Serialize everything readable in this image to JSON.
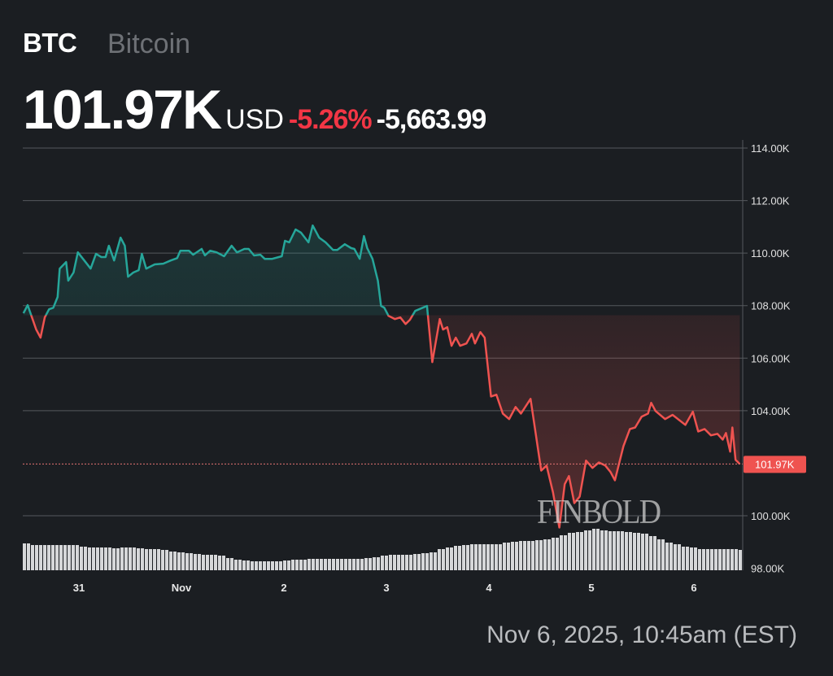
{
  "header": {
    "symbol": "BTC",
    "name": "Bitcoin",
    "price": "101.97K",
    "currency": "USD",
    "change_percent": "-5.26%",
    "change_value": "-5,663.99"
  },
  "footer": {
    "timestamp": "Nov 6, 2025, 10:45am (EST)"
  },
  "watermark": "FINBOLD",
  "colors": {
    "up": "#26a69a",
    "down": "#ef5350",
    "background": "#1b1e22",
    "grid": "#4a4d52",
    "change_negative": "#f23645"
  },
  "chart_data": {
    "type": "line",
    "title": "",
    "xlabel": "",
    "ylabel": "",
    "ylim": [
      98000,
      114000
    ],
    "grid": true,
    "y_ticks": [
      "114.00K",
      "112.00K",
      "110.00K",
      "108.00K",
      "106.00K",
      "104.00K",
      "100.00K",
      "98.00K"
    ],
    "y_tick_values": [
      114000,
      112000,
      110000,
      108000,
      106000,
      104000,
      100000,
      98000
    ],
    "x_ticks": [
      {
        "label": "31",
        "t": "2025-10-31T00:00"
      },
      {
        "label": "Nov",
        "t": "2025-11-01T00:00"
      },
      {
        "label": "2",
        "t": "2025-11-02T00:00"
      },
      {
        "label": "3",
        "t": "2025-11-03T00:00"
      },
      {
        "label": "4",
        "t": "2025-11-04T00:00"
      },
      {
        "label": "5",
        "t": "2025-11-05T00:00"
      },
      {
        "label": "6",
        "t": "2025-11-06T00:00"
      }
    ],
    "reference_price": 107634,
    "last_price": 101970,
    "last_price_label": "101.97K",
    "series": [
      {
        "points": [
          [
            "2025-10-30T11:00",
            107.71
          ],
          [
            "2025-10-30T12:00",
            108.02
          ],
          [
            "2025-10-30T13:00",
            107.55
          ],
          [
            "2025-10-30T14:00",
            107.09
          ],
          [
            "2025-10-30T15:00",
            106.78
          ],
          [
            "2025-10-30T16:00",
            107.55
          ],
          [
            "2025-10-30T17:00",
            107.86
          ],
          [
            "2025-10-30T18:00",
            107.92
          ],
          [
            "2025-10-30T19:00",
            108.33
          ],
          [
            "2025-10-30T19:30",
            109.41
          ],
          [
            "2025-10-30T21:00",
            109.66
          ],
          [
            "2025-10-30T21:30",
            108.95
          ],
          [
            "2025-10-30T22:45",
            109.26
          ],
          [
            "2025-10-30T23:45",
            110.03
          ],
          [
            "2025-10-31T01:15",
            109.72
          ],
          [
            "2025-10-31T02:45",
            109.41
          ],
          [
            "2025-10-31T04:00",
            109.97
          ],
          [
            "2025-10-31T05:15",
            109.85
          ],
          [
            "2025-10-31T06:15",
            109.85
          ],
          [
            "2025-10-31T07:00",
            110.28
          ],
          [
            "2025-10-31T08:15",
            109.72
          ],
          [
            "2025-10-31T09:45",
            110.59
          ],
          [
            "2025-10-31T10:45",
            110.28
          ],
          [
            "2025-10-31T11:30",
            109.1
          ],
          [
            "2025-10-31T12:45",
            109.26
          ],
          [
            "2025-10-31T14:00",
            109.35
          ],
          [
            "2025-10-31T14:45",
            109.97
          ],
          [
            "2025-10-31T15:45",
            109.41
          ],
          [
            "2025-10-31T17:45",
            109.57
          ],
          [
            "2025-10-31T19:45",
            109.6
          ],
          [
            "2025-10-31T21:30",
            109.72
          ],
          [
            "2025-10-31T23:00",
            109.81
          ],
          [
            "2025-10-31T23:45",
            110.09
          ],
          [
            "2025-11-01T01:45",
            110.09
          ],
          [
            "2025-11-01T02:45",
            109.94
          ],
          [
            "2025-11-01T04:45",
            110.16
          ],
          [
            "2025-11-01T05:30",
            109.91
          ],
          [
            "2025-11-01T06:45",
            110.09
          ],
          [
            "2025-11-01T08:15",
            110.03
          ],
          [
            "2025-11-01T10:00",
            109.88
          ],
          [
            "2025-11-01T11:45",
            110.28
          ],
          [
            "2025-11-01T13:00",
            110.03
          ],
          [
            "2025-11-01T14:45",
            110.16
          ],
          [
            "2025-11-01T15:45",
            110.16
          ],
          [
            "2025-11-01T17:00",
            109.91
          ],
          [
            "2025-11-01T18:30",
            109.94
          ],
          [
            "2025-11-01T19:30",
            109.78
          ],
          [
            "2025-11-01T21:15",
            109.78
          ],
          [
            "2025-11-01T23:30",
            109.88
          ],
          [
            "2025-11-02T00:15",
            110.47
          ],
          [
            "2025-11-02T01:15",
            110.41
          ],
          [
            "2025-11-02T02:45",
            110.9
          ],
          [
            "2025-11-02T04:00",
            110.78
          ],
          [
            "2025-11-02T05:45",
            110.41
          ],
          [
            "2025-11-02T06:45",
            111.05
          ],
          [
            "2025-11-02T08:15",
            110.59
          ],
          [
            "2025-11-02T09:45",
            110.41
          ],
          [
            "2025-11-02T11:30",
            110.12
          ],
          [
            "2025-11-02T12:30",
            110.12
          ],
          [
            "2025-11-02T14:15",
            110.34
          ],
          [
            "2025-11-02T15:45",
            110.19
          ],
          [
            "2025-11-02T16:30",
            110.16
          ],
          [
            "2025-11-02T17:45",
            109.78
          ],
          [
            "2025-11-02T18:45",
            110.65
          ],
          [
            "2025-11-02T19:30",
            110.19
          ],
          [
            "2025-11-02T20:45",
            109.78
          ],
          [
            "2025-11-02T22:00",
            108.95
          ],
          [
            "2025-11-02T22:45",
            107.99
          ],
          [
            "2025-11-02T23:30",
            107.92
          ],
          [
            "2025-11-03T00:30",
            107.61
          ],
          [
            "2025-11-03T02:00",
            107.49
          ],
          [
            "2025-11-03T03:15",
            107.55
          ],
          [
            "2025-11-03T04:30",
            107.3
          ],
          [
            "2025-11-03T05:30",
            107.46
          ],
          [
            "2025-11-03T06:45",
            107.8
          ],
          [
            "2025-11-03T08:30",
            107.92
          ],
          [
            "2025-11-03T09:30",
            107.99
          ],
          [
            "2025-11-03T10:45",
            105.85
          ],
          [
            "2025-11-03T12:30",
            107.49
          ],
          [
            "2025-11-03T13:15",
            107.09
          ],
          [
            "2025-11-03T14:15",
            107.18
          ],
          [
            "2025-11-03T15:15",
            106.47
          ],
          [
            "2025-11-03T16:15",
            106.78
          ],
          [
            "2025-11-03T17:15",
            106.47
          ],
          [
            "2025-11-03T18:45",
            106.56
          ],
          [
            "2025-11-03T20:00",
            106.93
          ],
          [
            "2025-11-03T20:45",
            106.56
          ],
          [
            "2025-11-03T22:00",
            106.99
          ],
          [
            "2025-11-03T23:00",
            106.78
          ],
          [
            "2025-11-04T00:30",
            104.54
          ],
          [
            "2025-11-04T01:45",
            104.61
          ],
          [
            "2025-11-04T03:15",
            103.89
          ],
          [
            "2025-11-04T04:45",
            103.68
          ],
          [
            "2025-11-04T06:15",
            104.14
          ],
          [
            "2025-11-04T07:30",
            103.89
          ],
          [
            "2025-11-04T09:45",
            104.45
          ],
          [
            "2025-11-04T12:15",
            101.72
          ],
          [
            "2025-11-04T13:30",
            101.91
          ],
          [
            "2025-11-04T15:00",
            100.89
          ],
          [
            "2025-11-04T16:30",
            99.55
          ],
          [
            "2025-11-04T17:45",
            101.2
          ],
          [
            "2025-11-04T18:45",
            101.51
          ],
          [
            "2025-11-04T20:00",
            100.48
          ],
          [
            "2025-11-04T21:15",
            100.73
          ],
          [
            "2025-11-04T22:45",
            102.1
          ],
          [
            "2025-11-05T00:15",
            101.82
          ],
          [
            "2025-11-05T01:45",
            102.03
          ],
          [
            "2025-11-05T03:15",
            101.91
          ],
          [
            "2025-11-05T04:30",
            101.66
          ],
          [
            "2025-11-05T05:30",
            101.35
          ],
          [
            "2025-11-05T07:30",
            102.65
          ],
          [
            "2025-11-05T09:00",
            103.3
          ],
          [
            "2025-11-05T10:15",
            103.36
          ],
          [
            "2025-11-05T11:45",
            103.77
          ],
          [
            "2025-11-05T13:15",
            103.89
          ],
          [
            "2025-11-05T14:00",
            104.3
          ],
          [
            "2025-11-05T15:00",
            103.99
          ],
          [
            "2025-11-05T17:15",
            103.68
          ],
          [
            "2025-11-05T19:00",
            103.84
          ],
          [
            "2025-11-05T22:00",
            103.46
          ],
          [
            "2025-11-05T23:45",
            103.96
          ],
          [
            "2025-11-06T01:00",
            103.21
          ],
          [
            "2025-11-06T02:30",
            103.3
          ],
          [
            "2025-11-06T04:00",
            103.06
          ],
          [
            "2025-11-06T05:30",
            103.12
          ],
          [
            "2025-11-06T06:45",
            102.9
          ],
          [
            "2025-11-06T07:30",
            103.15
          ],
          [
            "2025-11-06T08:30",
            102.44
          ],
          [
            "2025-11-06T09:00",
            103.36
          ],
          [
            "2025-11-06T09:45",
            102.13
          ],
          [
            "2025-11-06T10:45",
            101.97
          ]
        ]
      }
    ],
    "volume": [
      33,
      31,
      31,
      31,
      31,
      31,
      31,
      29,
      28,
      28,
      28,
      27,
      28,
      28,
      27,
      26,
      26,
      25,
      23,
      22,
      21,
      20,
      19,
      19,
      18,
      15,
      13,
      12,
      11,
      11,
      11,
      11,
      12,
      13,
      13,
      14,
      14,
      14,
      14,
      14,
      14,
      14,
      15,
      16,
      18,
      19,
      19,
      19,
      20,
      21,
      22,
      26,
      28,
      30,
      31,
      32,
      32,
      32,
      32,
      34,
      35,
      36,
      36,
      37,
      38,
      40,
      43,
      46,
      47,
      49,
      51,
      49,
      48,
      48,
      47,
      46,
      45,
      42,
      38,
      34,
      32,
      29,
      28,
      26,
      26,
      26,
      26,
      26,
      25
    ]
  }
}
